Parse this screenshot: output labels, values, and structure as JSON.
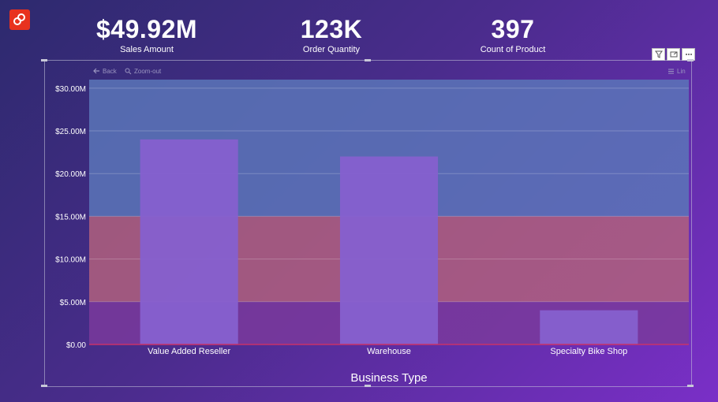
{
  "kpis": [
    {
      "value": "$49.92M",
      "label": "Sales Amount"
    },
    {
      "value": "123K",
      "label": "Order Quantity"
    },
    {
      "value": "397",
      "label": "Count of Product"
    }
  ],
  "toolbar": {
    "back_label": "Back",
    "zoom_out_label": "Zoom-out",
    "menu_label": "Lin"
  },
  "colors": {
    "band_low": "#7a3a9c",
    "band_mid": "#b0607e",
    "band_high": "#5a76b8",
    "bar": "#8660cf"
  },
  "chart_data": {
    "type": "bar",
    "categories": [
      "Value Added Reseller",
      "Warehouse",
      "Specialty Bike Shop"
    ],
    "values": [
      24.0,
      22.0,
      4.0
    ],
    "ylim": [
      0,
      31
    ],
    "yticks": [
      0,
      5,
      10,
      15,
      20,
      25,
      30
    ],
    "ytick_labels": [
      "$0.00",
      "$5.00M",
      "$10.00M",
      "$15.00M",
      "$20.00M",
      "$25.00M",
      "$30.00M"
    ],
    "xlabel": "Business Type",
    "ylabel": "",
    "grid": true,
    "background_bands": [
      {
        "from": 0,
        "to": 5
      },
      {
        "from": 5,
        "to": 15
      },
      {
        "from": 15,
        "to": 31
      }
    ]
  }
}
